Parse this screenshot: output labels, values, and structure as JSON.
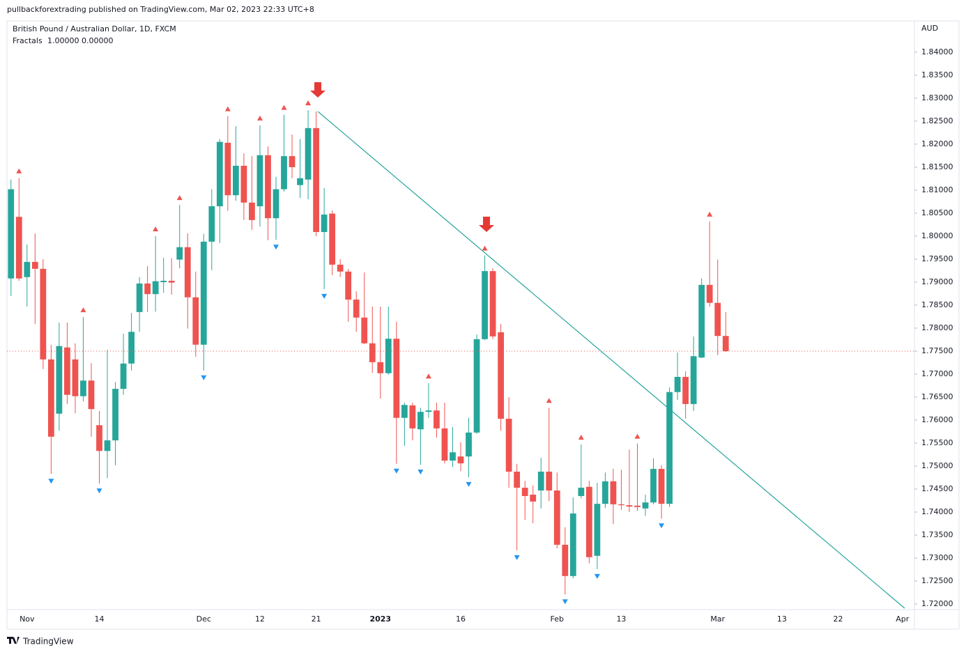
{
  "header": {
    "publisher": "pullbackforextrading published on TradingView.com, Mar 02, 2023 22:33 UTC+8",
    "brand": "TradingView"
  },
  "chart_data": {
    "type": "candlestick",
    "title": "British Pound / Australian Dollar, 1D, FXCM",
    "indicator": {
      "name": "Fractals",
      "up_label": "1.00000",
      "down_label": "0.00000",
      "up_color": "#ef5350",
      "down_color": "#2196f3"
    },
    "currency": "AUD",
    "up_color": "#26a69a",
    "down_color": "#ef5350",
    "grid": false,
    "ylim": [
      1.7188,
      1.8468
    ],
    "yticks": [
      {
        "value": 1.72,
        "label": "1.72000"
      },
      {
        "value": 1.725,
        "label": "1.72500"
      },
      {
        "value": 1.73,
        "label": "1.73000"
      },
      {
        "value": 1.735,
        "label": "1.73500"
      },
      {
        "value": 1.74,
        "label": "1.74000"
      },
      {
        "value": 1.745,
        "label": "1.74500"
      },
      {
        "value": 1.75,
        "label": "1.75000"
      },
      {
        "value": 1.755,
        "label": "1.75500"
      },
      {
        "value": 1.76,
        "label": "1.76000"
      },
      {
        "value": 1.765,
        "label": "1.76500"
      },
      {
        "value": 1.77,
        "label": "1.77000"
      },
      {
        "value": 1.775,
        "label": "1.77500"
      },
      {
        "value": 1.78,
        "label": "1.78000"
      },
      {
        "value": 1.785,
        "label": "1.78500"
      },
      {
        "value": 1.79,
        "label": "1.79000"
      },
      {
        "value": 1.795,
        "label": "1.79500"
      },
      {
        "value": 1.8,
        "label": "1.80000"
      },
      {
        "value": 1.805,
        "label": "1.80500"
      },
      {
        "value": 1.81,
        "label": "1.81000"
      },
      {
        "value": 1.815,
        "label": "1.81500"
      },
      {
        "value": 1.82,
        "label": "1.82000"
      },
      {
        "value": 1.825,
        "label": "1.82500"
      },
      {
        "value": 1.83,
        "label": "1.83000"
      },
      {
        "value": 1.835,
        "label": "1.83500"
      },
      {
        "value": 1.84,
        "label": "1.84000"
      }
    ],
    "categories": [
      null,
      null,
      "Nov",
      null,
      null,
      null,
      null,
      null,
      null,
      null,
      null,
      "14",
      null,
      null,
      null,
      null,
      null,
      null,
      null,
      null,
      null,
      null,
      null,
      null,
      "Dec",
      null,
      null,
      null,
      null,
      null,
      null,
      "12",
      null,
      null,
      null,
      null,
      null,
      null,
      "21",
      null,
      null,
      null,
      null,
      null,
      null,
      null,
      "2023",
      null,
      null,
      null,
      null,
      null,
      null,
      null,
      null,
      null,
      "16",
      null,
      null,
      null,
      null,
      null,
      null,
      null,
      null,
      null,
      null,
      null,
      "Feb",
      null,
      null,
      null,
      null,
      null,
      null,
      null,
      "13",
      null,
      null,
      null,
      null,
      null,
      null,
      null,
      null,
      null,
      null,
      null,
      "Mar",
      null,
      null,
      null,
      null,
      null,
      null,
      null,
      "13",
      null,
      null,
      null,
      null,
      null,
      null,
      "22",
      null,
      null,
      null,
      null,
      null,
      null,
      null,
      "Apr",
      null
    ],
    "open": [
      1.7908,
      1.8042,
      1.7911,
      1.7944,
      1.7929,
      1.7732,
      1.7614,
      1.7758,
      1.7732,
      1.7652,
      1.7686,
      1.7589,
      1.7533,
      1.7556,
      1.7668,
      1.7723,
      1.7835,
      1.7897,
      1.7874,
      1.79,
      1.7903,
      1.7949,
      1.7976,
      1.7867,
      1.7764,
      1.7988,
      1.8065,
      1.8203,
      1.8089,
      1.8153,
      1.8073,
      1.8065,
      1.8176,
      1.8039,
      1.8102,
      1.8174,
      1.8111,
      1.8123,
      1.8235,
      1.8009,
      1.8049,
      1.7938,
      1.7923,
      1.7862,
      1.7823,
      1.7767,
      1.7726,
      1.7702,
      1.7777,
      1.7605,
      1.7632,
      1.758,
      1.7618,
      1.7621,
      1.7582,
      1.7512,
      1.7521,
      1.7521,
      1.7573,
      1.7776,
      1.7924,
      1.7791,
      1.7603,
      1.7488,
      1.7453,
      1.7438,
      1.7447,
      1.7488,
      1.7447,
      1.7329,
      1.7261,
      1.7435,
      1.7455,
      1.7305,
      1.7418,
      1.7467,
      1.7417,
      1.7415,
      1.7414,
      1.7408,
      1.7421,
      1.7494,
      1.7418,
      1.7661,
      1.7694,
      1.7635,
      1.7736,
      1.7894,
      1.7855,
      1.7783,
      null,
      null,
      null,
      null,
      null,
      null,
      null,
      null,
      null,
      null,
      null,
      null,
      null,
      null,
      null,
      null,
      null,
      null,
      null,
      null,
      null,
      null,
      null
    ],
    "high": [
      1.8123,
      1.8126,
      1.7982,
      1.8006,
      1.795,
      1.7764,
      1.7812,
      1.7812,
      1.7767,
      1.7824,
      1.7724,
      1.762,
      1.7753,
      1.7683,
      1.7788,
      1.7833,
      1.7911,
      1.7935,
      1.8,
      1.7953,
      1.7952,
      1.8068,
      1.8006,
      1.7923,
      1.8005,
      1.8102,
      1.8211,
      1.8261,
      1.8239,
      1.818,
      1.8174,
      1.8241,
      1.8195,
      1.8129,
      1.8264,
      1.8221,
      1.8211,
      1.8274,
      1.8271,
      1.8105,
      1.8056,
      1.795,
      1.7929,
      1.788,
      1.7921,
      1.7847,
      1.7847,
      1.7847,
      1.7814,
      1.7638,
      1.7638,
      1.7627,
      1.768,
      1.7638,
      1.7638,
      1.7585,
      1.7552,
      1.7605,
      1.7786,
      1.7958,
      1.793,
      1.7809,
      1.765,
      1.7505,
      1.7468,
      1.7458,
      1.7518,
      1.7627,
      1.7486,
      1.7367,
      1.7432,
      1.7547,
      1.7468,
      1.7464,
      1.7486,
      1.7494,
      1.7492,
      1.7536,
      1.7549,
      1.7438,
      1.7517,
      1.7502,
      1.7671,
      1.7747,
      1.7706,
      1.7782,
      1.7908,
      1.8032,
      1.7949,
      1.7835,
      null,
      null,
      null,
      null,
      null,
      null,
      null,
      null,
      null,
      null,
      null,
      null,
      null,
      null,
      null,
      null,
      null,
      null,
      null,
      null,
      null,
      null,
      null
    ],
    "low": [
      1.787,
      1.7903,
      1.7847,
      1.7809,
      1.7711,
      1.7483,
      1.7577,
      1.7635,
      1.7615,
      1.7641,
      1.7564,
      1.7462,
      1.7474,
      1.7502,
      1.7655,
      1.7708,
      1.7792,
      1.7835,
      1.7836,
      1.7877,
      1.7873,
      1.793,
      1.7799,
      1.7738,
      1.7708,
      1.7926,
      1.7985,
      1.8055,
      1.8077,
      1.8035,
      1.8014,
      1.8021,
      1.7991,
      1.7992,
      1.8097,
      1.8126,
      1.8083,
      1.808,
      1.8,
      1.7885,
      1.7915,
      1.7911,
      1.7814,
      1.7792,
      1.7765,
      1.7703,
      1.7647,
      1.7699,
      1.7505,
      1.7544,
      1.7556,
      1.7503,
      1.7605,
      1.7562,
      1.7506,
      1.7498,
      1.7489,
      1.7476,
      1.757,
      1.7774,
      1.7776,
      1.7577,
      1.7453,
      1.7317,
      1.7383,
      1.7376,
      1.7408,
      1.7424,
      1.7321,
      1.7221,
      1.7256,
      1.743,
      1.7289,
      1.7276,
      1.7409,
      1.7374,
      1.7405,
      1.74,
      1.7403,
      1.7392,
      1.7417,
      1.7386,
      1.7411,
      1.7644,
      1.7603,
      1.762,
      1.7735,
      1.7847,
      1.7741,
      1.7748,
      null,
      null,
      null,
      null,
      null,
      null,
      null,
      null,
      null,
      null,
      null,
      null,
      null,
      null,
      null,
      null,
      null,
      null,
      null,
      null,
      null,
      null,
      null
    ],
    "close": [
      1.8102,
      1.7908,
      1.7944,
      1.7929,
      1.7732,
      1.7564,
      1.7761,
      1.7655,
      1.7652,
      1.7686,
      1.7624,
      1.7533,
      1.7556,
      1.7668,
      1.7723,
      1.7792,
      1.7897,
      1.7874,
      1.7902,
      1.7903,
      1.7899,
      1.7976,
      1.7867,
      1.7764,
      1.7988,
      1.8065,
      1.8205,
      1.8089,
      1.8153,
      1.8073,
      1.8035,
      1.8176,
      1.8039,
      1.8102,
      1.8174,
      1.815,
      1.8126,
      1.8235,
      1.8009,
      1.8047,
      1.7938,
      1.7923,
      1.7862,
      1.7823,
      1.7767,
      1.7726,
      1.7702,
      1.7777,
      1.7605,
      1.7633,
      1.7582,
      1.7618,
      1.7621,
      1.7582,
      1.7512,
      1.753,
      1.7506,
      1.7573,
      1.7776,
      1.7924,
      1.7782,
      1.7603,
      1.7488,
      1.7453,
      1.7435,
      1.7423,
      1.7488,
      1.7447,
      1.7329,
      1.7261,
      1.7397,
      1.7453,
      1.7302,
      1.7418,
      1.7467,
      1.7417,
      1.7415,
      1.7412,
      1.7411,
      1.7421,
      1.7494,
      1.7418,
      1.7661,
      1.7694,
      1.7635,
      1.7739,
      1.7894,
      1.7855,
      1.7783,
      1.775,
      null,
      null,
      null,
      null,
      null,
      null,
      null,
      null,
      null,
      null,
      null,
      null,
      null,
      null,
      null,
      null,
      null,
      null,
      null,
      null,
      null,
      null,
      null
    ],
    "fractal_up": [
      null,
      1.8126,
      null,
      null,
      null,
      null,
      null,
      null,
      null,
      1.7824,
      null,
      null,
      null,
      null,
      null,
      null,
      null,
      null,
      1.8,
      null,
      null,
      1.8068,
      null,
      null,
      null,
      null,
      null,
      1.8261,
      null,
      null,
      null,
      1.8241,
      null,
      null,
      1.8264,
      null,
      null,
      1.8274,
      null,
      null,
      null,
      null,
      null,
      null,
      null,
      null,
      null,
      null,
      null,
      null,
      null,
      null,
      1.768,
      null,
      null,
      null,
      null,
      null,
      null,
      1.7958,
      null,
      null,
      null,
      null,
      null,
      null,
      null,
      1.7627,
      null,
      null,
      null,
      1.7547,
      null,
      null,
      null,
      null,
      null,
      null,
      1.7549,
      null,
      null,
      null,
      null,
      null,
      null,
      null,
      null,
      1.8032,
      null,
      null,
      null,
      null,
      null,
      null,
      null,
      null,
      null,
      null,
      null,
      null,
      null,
      null,
      null,
      null,
      null,
      null,
      null,
      null,
      null,
      null,
      null,
      null,
      null
    ],
    "fractal_down": [
      null,
      null,
      null,
      null,
      null,
      1.7483,
      null,
      null,
      null,
      null,
      null,
      1.7462,
      null,
      null,
      null,
      null,
      null,
      null,
      null,
      null,
      null,
      null,
      null,
      null,
      1.7708,
      null,
      null,
      null,
      null,
      null,
      null,
      null,
      null,
      1.7992,
      null,
      null,
      null,
      null,
      null,
      1.7885,
      null,
      null,
      null,
      null,
      null,
      null,
      null,
      null,
      1.7505,
      null,
      null,
      1.7503,
      null,
      null,
      null,
      null,
      null,
      1.7476,
      null,
      null,
      null,
      null,
      null,
      1.7317,
      null,
      null,
      null,
      null,
      null,
      1.7221,
      null,
      null,
      null,
      1.7276,
      null,
      null,
      null,
      null,
      null,
      null,
      null,
      1.7386,
      null,
      null,
      null,
      null,
      null,
      null,
      null,
      null,
      null,
      null,
      null,
      null,
      null,
      null,
      null,
      null,
      null,
      null,
      null,
      null,
      null,
      null,
      null,
      null,
      null,
      null,
      null,
      null,
      null,
      null,
      null
    ]
  }
}
